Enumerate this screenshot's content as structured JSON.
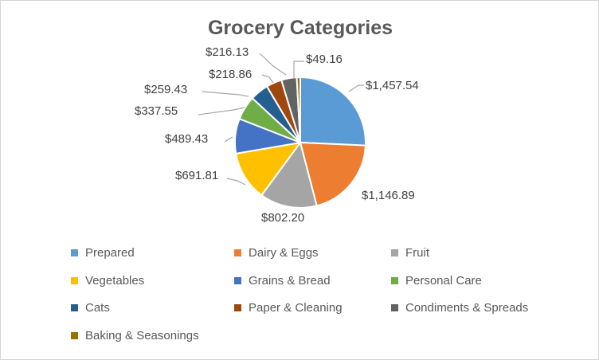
{
  "title": "Grocery Categories",
  "chart_data": {
    "type": "pie",
    "title": "Grocery Categories",
    "categories": [
      "Prepared",
      "Dairy & Eggs",
      "Fruit",
      "Vegetables",
      "Grains & Bread",
      "Personal Care",
      "Cats",
      "Paper & Cleaning",
      "Condiments & Spreads",
      "Baking & Seasonings"
    ],
    "values": [
      1457.54,
      1146.89,
      802.2,
      691.81,
      489.43,
      337.55,
      259.43,
      218.86,
      216.13,
      49.16
    ],
    "labels_formatted": [
      "$1,457.54",
      "$1,146.89",
      "$802.20",
      "$691.81",
      "$489.43",
      "$337.55",
      "$259.43",
      "$218.86",
      "$216.13",
      "$49.16"
    ],
    "colors": [
      "#5B9BD5",
      "#ED7D31",
      "#A5A5A5",
      "#FFC000",
      "#4472C4",
      "#70AD47",
      "#255E91",
      "#9E480E",
      "#636363",
      "#997300"
    ],
    "start_angle_deg": 0,
    "direction": "clockwise",
    "legend_position": "bottom",
    "leader_line_color": "#A6A6A6",
    "slice_border_color": "#FFFFFF",
    "title_color": "#595959",
    "label_color": "#404040",
    "legend_text_color": "#595959"
  }
}
